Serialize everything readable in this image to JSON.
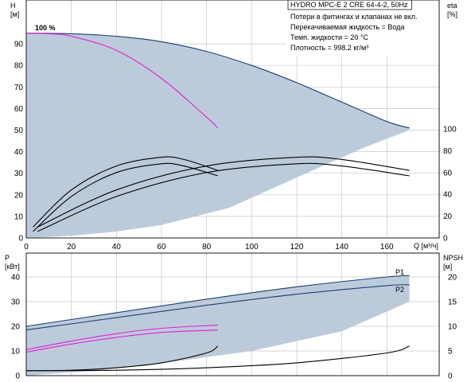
{
  "info": {
    "title": "HYDRO MPC-E 2 CRE 64-4-2, 50Hz",
    "lines": [
      "Потери в фитингах и клапанах не вкл.",
      "Перекачиваемая жидкость = Вода",
      "Темп. жидкости = 20 °C",
      "Плотность = 998.2 кг/м³"
    ]
  },
  "colors": {
    "frame": "#1a1a1a",
    "grid": "#c8c8c8",
    "area": "#bccbdc",
    "navy": "#1e3f72",
    "black": "#000000",
    "magenta": "#e020d8"
  },
  "chart_data": [
    {
      "type": "line",
      "panel": "top",
      "title": "",
      "xlabel": "Q [м³/ч]",
      "ylabel": "H [м]",
      "y2label": "eta [%]",
      "xlim": [
        0,
        180
      ],
      "ylim": [
        0,
        100
      ],
      "y2lim": [
        0,
        180
      ],
      "xticks": [
        0,
        20,
        40,
        60,
        80,
        100,
        120,
        140,
        160
      ],
      "yticks": [
        0,
        10,
        20,
        30,
        40,
        50,
        60,
        70,
        80,
        90
      ],
      "y2ticks": [
        0,
        20,
        40,
        60,
        80,
        100
      ],
      "grid": true,
      "annotations": [
        {
          "text": "100 %",
          "x": 8,
          "y": 94.5
        }
      ],
      "series": [
        {
          "role": "H max curve",
          "color": "navy",
          "x": [
            0,
            20,
            40,
            60,
            80,
            100,
            120,
            140,
            160,
            170
          ],
          "y": [
            95,
            94.7,
            93.5,
            91,
            86.5,
            80,
            72,
            63,
            54,
            51
          ]
        },
        {
          "role": "H curve single pump",
          "color": "magenta",
          "x": [
            0,
            10,
            20,
            40,
            60,
            80,
            85
          ],
          "y": [
            95,
            94.7,
            93.5,
            87,
            74,
            56,
            51
          ]
        },
        {
          "role": "eta single pump upper",
          "axis": "y2",
          "color": "black",
          "x": [
            3,
            20,
            40,
            60,
            70,
            85
          ],
          "y": [
            10,
            44,
            66,
            74,
            72,
            62
          ]
        },
        {
          "role": "eta single pump lower",
          "axis": "y2",
          "color": "black",
          "x": [
            3,
            20,
            40,
            60,
            70,
            85
          ],
          "y": [
            6,
            38,
            60,
            68,
            66,
            57
          ]
        },
        {
          "role": "eta two pumps upper",
          "axis": "y2",
          "color": "black",
          "x": [
            5,
            40,
            80,
            120,
            140,
            170
          ],
          "y": [
            10,
            44,
            66,
            74,
            72,
            62
          ]
        },
        {
          "role": "eta two pumps lower",
          "axis": "y2",
          "color": "black",
          "x": [
            5,
            40,
            80,
            120,
            140,
            170
          ],
          "y": [
            6,
            38,
            60,
            68,
            66,
            57
          ]
        }
      ]
    },
    {
      "type": "line",
      "panel": "bottom",
      "title": "",
      "xlabel": "",
      "ylabel": "P [кВт]",
      "y2label": "NPSH [м]",
      "xlim": [
        0,
        180
      ],
      "ylim": [
        0,
        50
      ],
      "y2lim": [
        0,
        25
      ],
      "yticks": [
        0,
        10,
        20,
        30,
        40
      ],
      "y2ticks": [
        0,
        5,
        10,
        15,
        20
      ],
      "grid": true,
      "series": [
        {
          "name": "P1",
          "color": "navy",
          "x": [
            0,
            40,
            80,
            120,
            160,
            170
          ],
          "y": [
            20,
            25.5,
            31,
            36,
            40,
            40.5
          ]
        },
        {
          "name": "P2",
          "color": "navy",
          "x": [
            0,
            40,
            80,
            120,
            160,
            170
          ],
          "y": [
            18.5,
            23.5,
            28.5,
            33,
            36.5,
            36.8
          ]
        },
        {
          "role": "P1 single pump",
          "color": "magenta",
          "x": [
            0,
            20,
            40,
            60,
            85
          ],
          "y": [
            10.5,
            14,
            17,
            19.2,
            20.5
          ]
        },
        {
          "role": "P2 single pump",
          "color": "magenta",
          "x": [
            0,
            20,
            40,
            60,
            85
          ],
          "y": [
            9.5,
            12.8,
            15.5,
            17.5,
            18.5
          ]
        },
        {
          "role": "NPSH single pump",
          "axis": "y2",
          "color": "black",
          "x": [
            0,
            20,
            40,
            60,
            80,
            85
          ],
          "y": [
            1,
            1.1,
            1.6,
            2.6,
            4.6,
            6
          ]
        },
        {
          "role": "NPSH two pumps",
          "axis": "y2",
          "color": "black",
          "x": [
            0,
            40,
            80,
            120,
            160,
            170
          ],
          "y": [
            1,
            1.1,
            1.6,
            2.6,
            4.6,
            6
          ]
        }
      ]
    }
  ]
}
